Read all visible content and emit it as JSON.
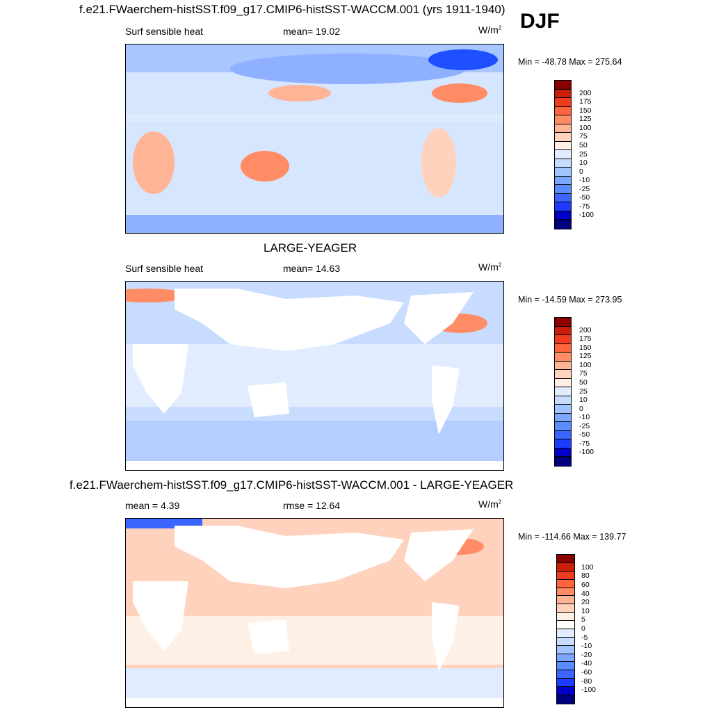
{
  "season": "DJF",
  "colors": {
    "land_outline": "#000000",
    "scale_abs": [
      "#000080",
      "#0000c8",
      "#1e3cff",
      "#3c64ff",
      "#5a8cff",
      "#7ba7ff",
      "#a0c4ff",
      "#c8dcff",
      "#e1edff",
      "#fff0e6",
      "#ffd2be",
      "#ffb496",
      "#ff8c64",
      "#ff643c",
      "#f03c1e",
      "#c81e0a",
      "#8c0000"
    ],
    "scale_diff": [
      "#000080",
      "#0000c8",
      "#1e3cff",
      "#3c64ff",
      "#5a8cff",
      "#7ba7ff",
      "#a0c4ff",
      "#c8dcff",
      "#e1edff",
      "#ffffff",
      "#fff0e6",
      "#ffd2be",
      "#ffb496",
      "#ff8c64",
      "#ff643c",
      "#f03c1e",
      "#c81e0a",
      "#8c0000"
    ]
  },
  "chart_data": [
    {
      "type": "heatmap",
      "title": "f.e21.FWaerchem-histSST.f09_g17.CMIP6-histSST-WACCM.001 (yrs 1911-1940)",
      "left_label": "Surf sensible heat",
      "center_label": "mean=  19.02",
      "units": "W/m",
      "units_sup": "2",
      "minmax": "Min = -48.78 Max = 275.64",
      "min": -48.78,
      "max": 275.64,
      "mean": 19.02,
      "colorbar_levels": [
        "200",
        "175",
        "150",
        "125",
        "100",
        "75",
        "50",
        "25",
        "10",
        "0",
        "-10",
        "-25",
        "-50",
        "-75",
        "-100"
      ]
    },
    {
      "type": "heatmap",
      "title": "LARGE-YEAGER",
      "left_label": "Surf sensible heat",
      "center_label": "mean=  14.63",
      "units": "W/m",
      "units_sup": "2",
      "minmax": "Min = -14.59 Max = 273.95",
      "min": -14.59,
      "max": 273.95,
      "mean": 14.63,
      "colorbar_levels": [
        "200",
        "175",
        "150",
        "125",
        "100",
        "75",
        "50",
        "25",
        "10",
        "0",
        "-10",
        "-25",
        "-50",
        "-75",
        "-100"
      ]
    },
    {
      "type": "heatmap",
      "title": "f.e21.FWaerchem-histSST.f09_g17.CMIP6-histSST-WACCM.001 - LARGE-YEAGER",
      "left_label": "mean =   4.39",
      "center_label": "rmse =  12.64",
      "units": "W/m",
      "units_sup": "2",
      "minmax": "Min = -114.66 Max = 139.77",
      "min": -114.66,
      "max": 139.77,
      "mean": 4.39,
      "rmse": 12.64,
      "colorbar_levels": [
        "100",
        "80",
        "60",
        "40",
        "20",
        "10",
        "5",
        "0",
        "-5",
        "-10",
        "-20",
        "-40",
        "-60",
        "-80",
        "-100"
      ]
    }
  ]
}
